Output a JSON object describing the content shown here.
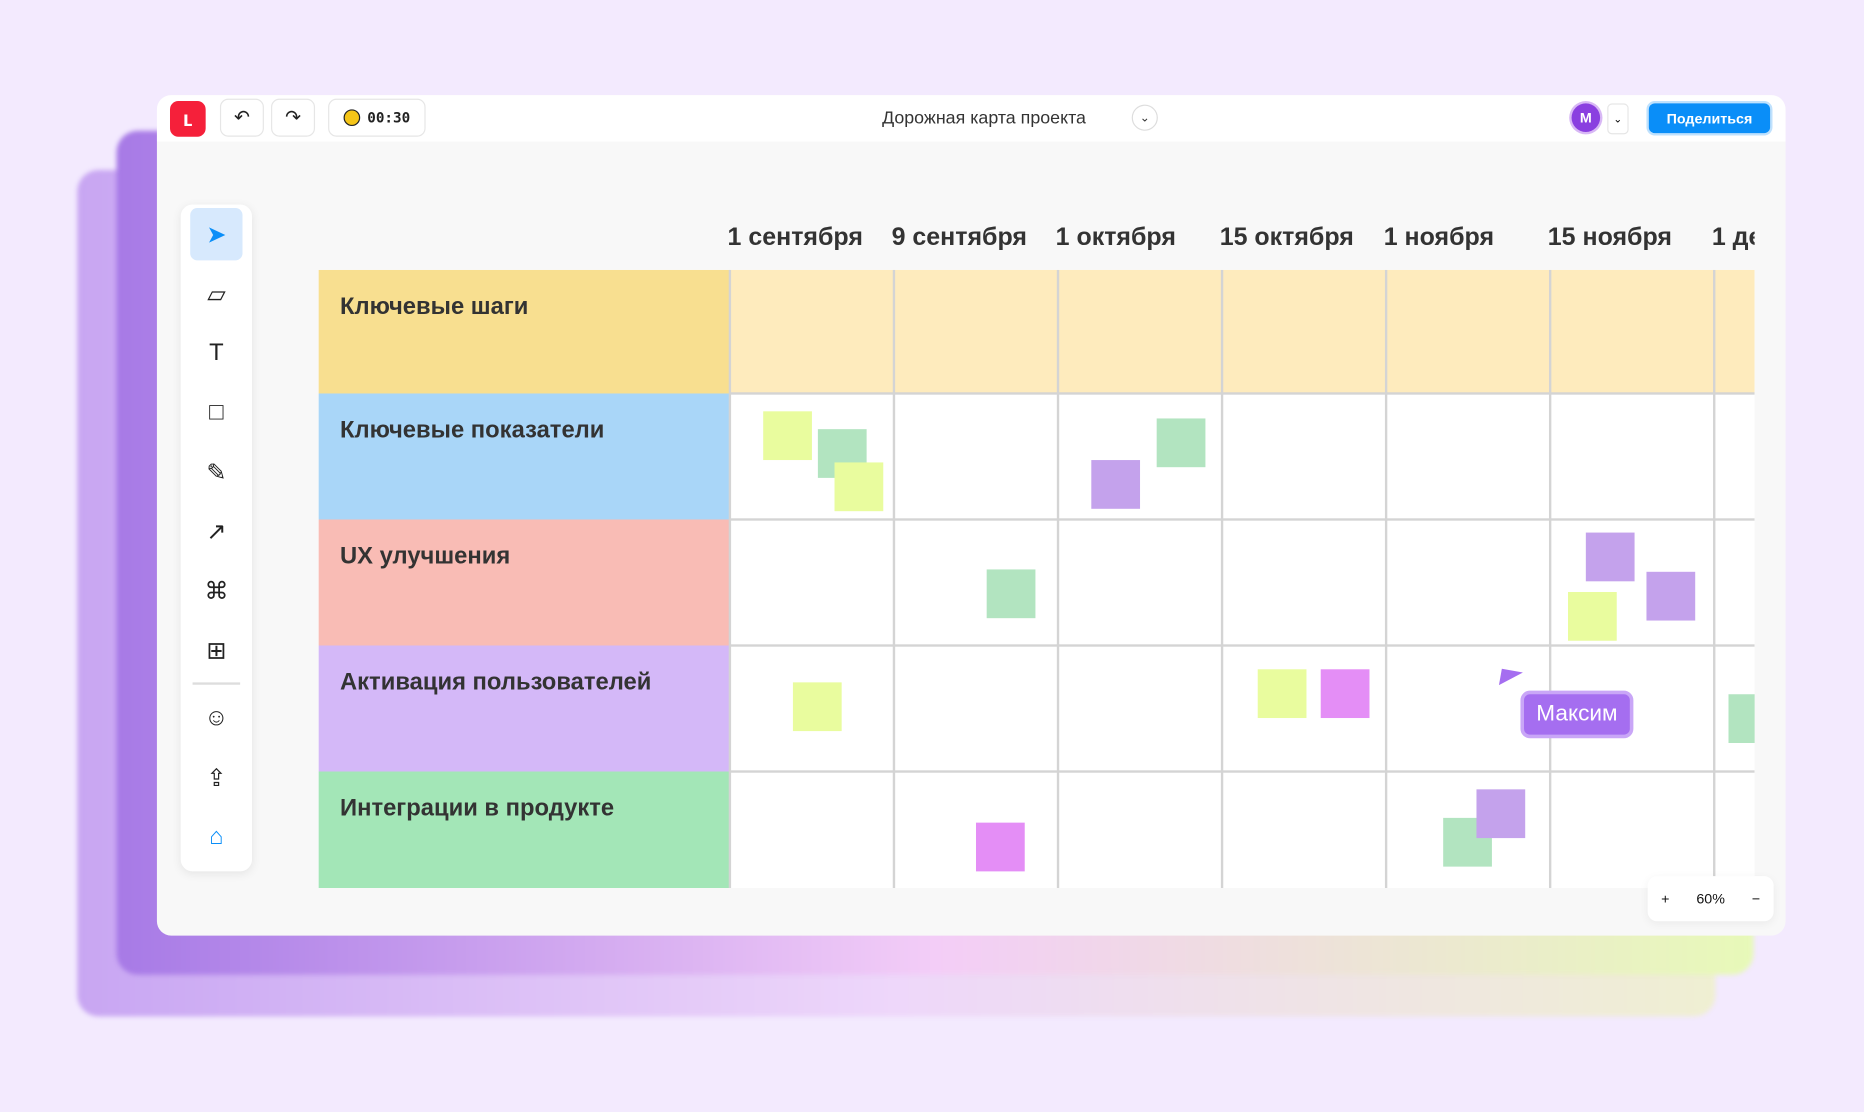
{
  "topbar": {
    "title": "Дорожная карта проекта",
    "timer": "00:30",
    "avatar": "M",
    "share": "Поделиться",
    "undo": "↶",
    "redo": "↷",
    "dropdown": "⌄"
  },
  "dates": [
    "1 сентября",
    "9 сентября",
    "1 октября",
    "15 октября",
    "1 ноября",
    "15 ноября",
    "1 де"
  ],
  "rows": [
    "Ключевые шаги",
    "Ключевые показатели",
    "UX улучшения",
    "Активация пользователей",
    "Интеграции в продукте"
  ],
  "row_colors": [
    "#f8df90",
    "#a9d6f8",
    "#f9bcb5",
    "#d4b8f8",
    "#a3e6b7"
  ],
  "cursor_user": "Максим",
  "zoom": {
    "in": "+",
    "level": "60%",
    "out": "−"
  }
}
